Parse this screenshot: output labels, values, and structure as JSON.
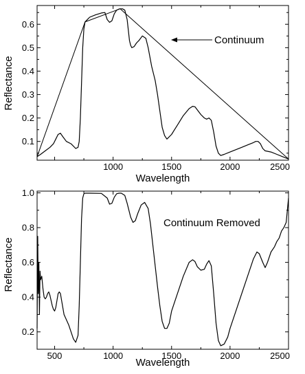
{
  "chart_data": [
    {
      "type": "line",
      "title": "",
      "xlabel": "Wavelength",
      "ylabel": "Reflectance",
      "xlim": [
        350,
        2500
      ],
      "ylim": [
        0.02,
        0.68
      ],
      "xticks": [
        500,
        1000,
        1500,
        2000,
        2500
      ],
      "xtick_labels": [
        "",
        "1000",
        "1500",
        "2000",
        "2500"
      ],
      "yticks": [
        0.1,
        0.2,
        0.3,
        0.4,
        0.5,
        0.6
      ],
      "ytick_labels": [
        "0.1",
        "0.2",
        "0.3",
        "0.4",
        "0.5",
        "0.6"
      ],
      "grid": false,
      "annotation": {
        "text": "Continuum",
        "arrow_to": [
          1220,
          0.565
        ]
      },
      "series": [
        {
          "name": "",
          "role": "spectrum",
          "x": [
            350,
            380,
            420,
            460,
            490,
            510,
            530,
            550,
            570,
            600,
            640,
            680,
            700,
            710,
            720,
            730,
            740,
            750,
            760,
            800,
            850,
            900,
            930,
            950,
            970,
            990,
            1010,
            1030,
            1050,
            1060,
            1080,
            1100,
            1120,
            1140,
            1150,
            1160,
            1180,
            1200,
            1220,
            1250,
            1280,
            1300,
            1330,
            1360,
            1380,
            1400,
            1420,
            1440,
            1460,
            1500,
            1550,
            1600,
            1650,
            1680,
            1700,
            1720,
            1750,
            1780,
            1800,
            1820,
            1840,
            1860,
            1880,
            1900,
            1920,
            1950,
            2000,
            2050,
            2100,
            2150,
            2200,
            2220,
            2240,
            2260,
            2280,
            2300,
            2350,
            2400,
            2450,
            2500
          ],
          "y": [
            0.035,
            0.045,
            0.06,
            0.075,
            0.09,
            0.11,
            0.13,
            0.135,
            0.12,
            0.1,
            0.09,
            0.07,
            0.075,
            0.1,
            0.2,
            0.35,
            0.5,
            0.58,
            0.61,
            0.63,
            0.64,
            0.648,
            0.65,
            0.62,
            0.608,
            0.615,
            0.645,
            0.66,
            0.665,
            0.666,
            0.666,
            0.66,
            0.62,
            0.53,
            0.51,
            0.5,
            0.505,
            0.52,
            0.53,
            0.55,
            0.54,
            0.5,
            0.42,
            0.36,
            0.3,
            0.23,
            0.16,
            0.125,
            0.11,
            0.13,
            0.17,
            0.21,
            0.24,
            0.25,
            0.248,
            0.235,
            0.215,
            0.2,
            0.195,
            0.2,
            0.19,
            0.14,
            0.08,
            0.05,
            0.04,
            0.045,
            0.055,
            0.065,
            0.075,
            0.085,
            0.095,
            0.1,
            0.1,
            0.09,
            0.07,
            0.06,
            0.055,
            0.045,
            0.035,
            0.025
          ]
        },
        {
          "name": "",
          "role": "continuum",
          "x": [
            350,
            760,
            1060,
            2500
          ],
          "y": [
            0.035,
            0.61,
            0.666,
            0.025
          ]
        }
      ]
    },
    {
      "type": "line",
      "title": "",
      "xlabel": "Wavelength",
      "ylabel": "Reflectance",
      "xlim": [
        350,
        2500
      ],
      "ylim": [
        0.1,
        1.01
      ],
      "xticks": [
        500,
        1000,
        1500,
        2000,
        2500
      ],
      "xtick_labels": [
        "500",
        "1000",
        "1500",
        "2000",
        "2500"
      ],
      "yticks": [
        0.2,
        0.4,
        0.6,
        0.8,
        1.0
      ],
      "ytick_labels": [
        "0.2",
        "0.4",
        "0.6",
        "0.8",
        "1.0"
      ],
      "grid": false,
      "annotation": {
        "text": "Continuum Removed"
      },
      "series": [
        {
          "name": "",
          "role": "continuum-removed",
          "x": [
            350,
            355,
            360,
            365,
            370,
            375,
            380,
            390,
            400,
            410,
            420,
            430,
            440,
            450,
            460,
            470,
            480,
            490,
            500,
            510,
            520,
            530,
            540,
            550,
            560,
            580,
            600,
            620,
            640,
            660,
            680,
            700,
            710,
            720,
            730,
            740,
            750,
            760,
            800,
            900,
            950,
            970,
            990,
            1010,
            1030,
            1050,
            1070,
            1100,
            1120,
            1150,
            1170,
            1190,
            1210,
            1240,
            1270,
            1300,
            1320,
            1340,
            1360,
            1380,
            1400,
            1420,
            1440,
            1460,
            1480,
            1500,
            1550,
            1600,
            1650,
            1680,
            1700,
            1720,
            1750,
            1780,
            1800,
            1820,
            1840,
            1860,
            1880,
            1900,
            1920,
            1950,
            1980,
            2000,
            2050,
            2100,
            2150,
            2200,
            2230,
            2250,
            2280,
            2300,
            2320,
            2350,
            2380,
            2400,
            2420,
            2440,
            2460,
            2480,
            2500
          ],
          "y": [
            0.22,
            0.75,
            0.42,
            0.6,
            0.3,
            0.55,
            0.5,
            0.52,
            0.45,
            0.4,
            0.39,
            0.4,
            0.42,
            0.43,
            0.41,
            0.38,
            0.35,
            0.33,
            0.32,
            0.34,
            0.38,
            0.42,
            0.43,
            0.42,
            0.38,
            0.3,
            0.27,
            0.24,
            0.2,
            0.16,
            0.14,
            0.18,
            0.35,
            0.6,
            0.85,
            0.97,
            0.995,
            0.998,
            0.998,
            0.997,
            0.97,
            0.935,
            0.94,
            0.975,
            0.995,
            0.998,
            0.998,
            0.985,
            0.94,
            0.86,
            0.83,
            0.84,
            0.88,
            0.93,
            0.945,
            0.91,
            0.82,
            0.7,
            0.58,
            0.46,
            0.35,
            0.26,
            0.22,
            0.22,
            0.25,
            0.32,
            0.42,
            0.52,
            0.6,
            0.615,
            0.605,
            0.575,
            0.555,
            0.56,
            0.59,
            0.61,
            0.58,
            0.42,
            0.25,
            0.15,
            0.12,
            0.13,
            0.17,
            0.22,
            0.32,
            0.42,
            0.52,
            0.62,
            0.66,
            0.65,
            0.6,
            0.57,
            0.6,
            0.66,
            0.69,
            0.72,
            0.74,
            0.78,
            0.8,
            0.83,
            0.97
          ]
        }
      ]
    }
  ]
}
